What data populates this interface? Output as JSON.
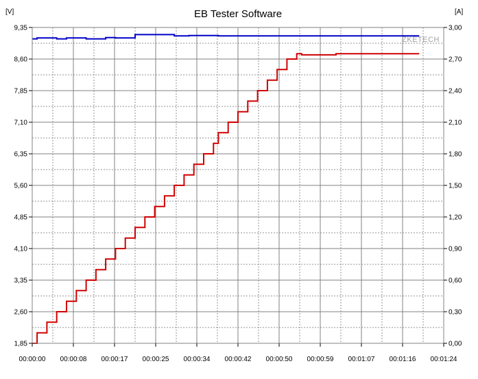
{
  "chart_data": {
    "type": "line",
    "title": "EB Tester Software",
    "watermark": "ZKETECH",
    "left_axis": {
      "unit": "[V]",
      "range": [
        1.85,
        9.35
      ],
      "ticks": [
        "1,85",
        "2,60",
        "3,35",
        "4,10",
        "4,85",
        "5,60",
        "6,35",
        "7,10",
        "7,85",
        "8,60",
        "9,35"
      ]
    },
    "right_axis": {
      "unit": "[A]",
      "range": [
        0.0,
        3.0
      ],
      "ticks": [
        "0,00",
        "0,30",
        "0,60",
        "0,90",
        "1,20",
        "1,50",
        "1,80",
        "2,10",
        "2,40",
        "2,70",
        "3,00"
      ]
    },
    "x_axis": {
      "range_seconds": [
        0,
        84
      ],
      "ticks": [
        "00:00:00",
        "00:00:08",
        "00:00:17",
        "00:00:25",
        "00:00:34",
        "00:00:42",
        "00:00:50",
        "00:00:59",
        "00:01:07",
        "00:01:16",
        "00:01:24"
      ]
    },
    "grid": true,
    "series": [
      {
        "axis": "left",
        "color": "#0000c8",
        "x": [
          0,
          1,
          1,
          5,
          5,
          7,
          7,
          11,
          11,
          15,
          15,
          17,
          17,
          21,
          21,
          29,
          29,
          32,
          32,
          38,
          38,
          79
        ],
        "y": [
          9.08,
          9.08,
          9.1,
          9.1,
          9.08,
          9.08,
          9.1,
          9.1,
          9.08,
          9.08,
          9.11,
          9.11,
          9.1,
          9.1,
          9.18,
          9.18,
          9.15,
          9.15,
          9.16,
          9.16,
          9.15,
          9.15
        ]
      },
      {
        "axis": "right",
        "color": "#d00000",
        "x": [
          0,
          1,
          1,
          3,
          3,
          5,
          5,
          7,
          7,
          9,
          9,
          11,
          11,
          13,
          13,
          15,
          15,
          17,
          17,
          19,
          19,
          21,
          21,
          23,
          23,
          25,
          25,
          27,
          27,
          29,
          29,
          31,
          31,
          33,
          33,
          35,
          35,
          37,
          37,
          38,
          38,
          40,
          40,
          42,
          42,
          44,
          44,
          46,
          46,
          48,
          48,
          50,
          50,
          52,
          52,
          54,
          54,
          55,
          55,
          62,
          62,
          79
        ],
        "y": [
          0.0,
          0.0,
          0.1,
          0.1,
          0.2,
          0.2,
          0.3,
          0.3,
          0.4,
          0.4,
          0.5,
          0.5,
          0.6,
          0.6,
          0.7,
          0.7,
          0.8,
          0.8,
          0.9,
          0.9,
          1.0,
          1.0,
          1.1,
          1.1,
          1.2,
          1.2,
          1.3,
          1.3,
          1.4,
          1.4,
          1.5,
          1.5,
          1.6,
          1.6,
          1.7,
          1.7,
          1.8,
          1.8,
          1.9,
          1.9,
          2.0,
          2.0,
          2.1,
          2.1,
          2.2,
          2.2,
          2.3,
          2.3,
          2.4,
          2.4,
          2.5,
          2.5,
          2.6,
          2.6,
          2.7,
          2.7,
          2.75,
          2.75,
          2.74,
          2.74,
          2.75,
          2.75
        ]
      }
    ]
  }
}
